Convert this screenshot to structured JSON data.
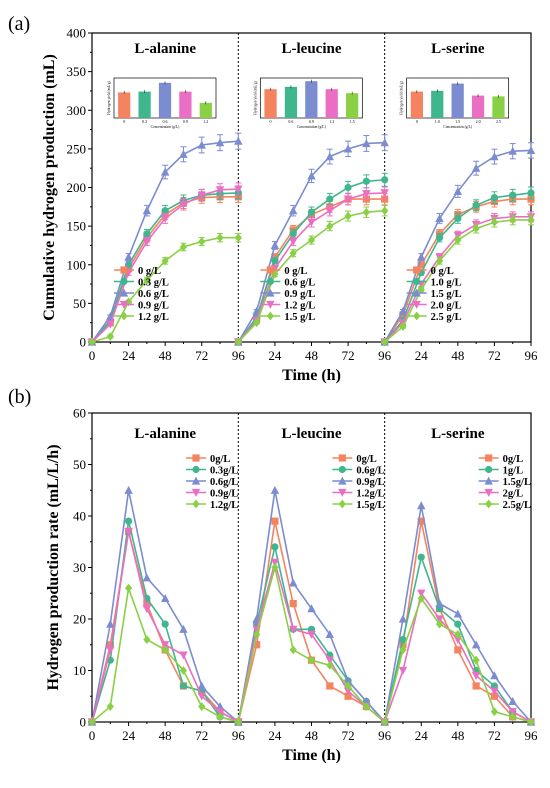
{
  "panel_labels": [
    "(a)",
    "(b)"
  ],
  "chart_data": [
    {
      "type": "line",
      "panel": "(a)",
      "ylabel": "Cumulative hydrogen production (mL)",
      "xlabel": "Time (h)",
      "ylim": [
        0,
        400
      ],
      "yticks": [
        0,
        50,
        100,
        150,
        200,
        250,
        300,
        350,
        400
      ],
      "xticks": [
        "0",
        "24",
        "48",
        "72",
        "96",
        "24",
        "48",
        "72",
        "96",
        "24",
        "48",
        "72",
        "96"
      ],
      "x": [
        0,
        12,
        24,
        36,
        48,
        60,
        72,
        84,
        96
      ],
      "grid": false,
      "legend_position": "bottom-right",
      "subplots": [
        {
          "title": "L-alanine",
          "series": [
            {
              "name": "0 g/L",
              "color": "#f4845f",
              "marker": "square",
              "values": [
                0,
                25,
                95,
                135,
                165,
                180,
                187,
                188,
                188
              ]
            },
            {
              "name": "0.3 g/L",
              "color": "#3fb68e",
              "marker": "circle",
              "values": [
                0,
                28,
                100,
                140,
                170,
                183,
                190,
                192,
                193
              ]
            },
            {
              "name": "0.6 g/L",
              "color": "#7b8cd0",
              "marker": "triangle",
              "values": [
                0,
                33,
                110,
                170,
                220,
                243,
                255,
                258,
                260
              ]
            },
            {
              "name": "0.9 g/L",
              "color": "#ea6fc4",
              "marker": "triangle-down",
              "values": [
                0,
                23,
                90,
                130,
                160,
                178,
                190,
                197,
                198
              ]
            },
            {
              "name": "1.2 g/L",
              "color": "#8ad044",
              "marker": "diamond",
              "values": [
                0,
                7,
                52,
                80,
                105,
                123,
                130,
                135,
                135
              ]
            }
          ],
          "inset": {
            "xlabel": "Concentration (g/L)",
            "ylabel": "Hydrogen yield (mL/g)",
            "categories": [
              "0",
              "0.3",
              "0.6",
              "0.9",
              "1.2"
            ],
            "values": [
              3.2,
              3.3,
              4.4,
              3.3,
              1.9
            ],
            "ylim": [
              0,
              5
            ],
            "colors": [
              "#f4845f",
              "#3fb68e",
              "#7b8cd0",
              "#ea6fc4",
              "#8ad044"
            ]
          }
        },
        {
          "title": "L-leucine",
          "series": [
            {
              "name": "0 g/L",
              "color": "#f4845f",
              "marker": "square",
              "values": [
                0,
                30,
                110,
                145,
                165,
                175,
                185,
                185,
                185
              ]
            },
            {
              "name": "0.6 g/L",
              "color": "#3fb68e",
              "marker": "circle",
              "values": [
                0,
                32,
                105,
                140,
                168,
                185,
                200,
                208,
                210
              ]
            },
            {
              "name": "0.9 g/L",
              "color": "#7b8cd0",
              "marker": "triangle",
              "values": [
                0,
                40,
                125,
                170,
                215,
                240,
                250,
                257,
                258
              ]
            },
            {
              "name": "1.2 g/L",
              "color": "#ea6fc4",
              "marker": "triangle-down",
              "values": [
                0,
                28,
                95,
                130,
                155,
                170,
                185,
                192,
                193
              ]
            },
            {
              "name": "1.5 g/L",
              "color": "#8ad044",
              "marker": "diamond",
              "values": [
                0,
                25,
                88,
                115,
                132,
                150,
                163,
                168,
                170
              ]
            }
          ],
          "inset": {
            "xlabel": "Concentration (g/L)",
            "ylabel": "Hydrogen yield (mL/g)",
            "categories": [
              "0",
              "0.6",
              "0.9",
              "1.2",
              "1.5"
            ],
            "values": [
              3.6,
              3.9,
              4.6,
              3.6,
              3.1
            ],
            "ylim": [
              0,
              5
            ],
            "colors": [
              "#f4845f",
              "#3fb68e",
              "#7b8cd0",
              "#ea6fc4",
              "#8ad044"
            ]
          }
        },
        {
          "title": "L-serine",
          "series": [
            {
              "name": "0 g/L",
              "color": "#f4845f",
              "marker": "square",
              "values": [
                0,
                35,
                100,
                140,
                165,
                175,
                182,
                185,
                185
              ]
            },
            {
              "name": "1.0 g/L",
              "color": "#3fb68e",
              "marker": "circle",
              "values": [
                0,
                28,
                90,
                135,
                160,
                177,
                187,
                190,
                193
              ]
            },
            {
              "name": "1.5 g/L",
              "color": "#7b8cd0",
              "marker": "triangle",
              "values": [
                0,
                40,
                110,
                160,
                195,
                225,
                240,
                247,
                248
              ]
            },
            {
              "name": "2.0 g/L",
              "color": "#ea6fc4",
              "marker": "triangle-down",
              "values": [
                0,
                25,
                75,
                110,
                138,
                152,
                160,
                162,
                162
              ]
            },
            {
              "name": "2.5 g/L",
              "color": "#8ad044",
              "marker": "diamond",
              "values": [
                0,
                20,
                68,
                105,
                132,
                147,
                155,
                158,
                158
              ]
            }
          ],
          "inset": {
            "xlabel": "Concentration (g/L)",
            "ylabel": "Hydrogen yield (mL/g)",
            "categories": [
              "0",
              "1.0",
              "1.5",
              "2.0",
              "2.5"
            ],
            "values": [
              3.3,
              3.4,
              4.3,
              2.8,
              2.7
            ],
            "ylim": [
              0,
              5
            ],
            "colors": [
              "#f4845f",
              "#3fb68e",
              "#7b8cd0",
              "#ea6fc4",
              "#8ad044"
            ]
          }
        }
      ]
    },
    {
      "type": "line",
      "panel": "(b)",
      "ylabel": "Hydrogen production rate (mL/L/h)",
      "xlabel": "Time (h)",
      "ylim": [
        0,
        60
      ],
      "yticks": [
        0,
        10,
        20,
        30,
        40,
        50,
        60
      ],
      "xticks": [
        "0",
        "24",
        "48",
        "72",
        "96",
        "24",
        "48",
        "72",
        "96",
        "24",
        "48",
        "72",
        "96"
      ],
      "x": [
        0,
        12,
        24,
        36,
        48,
        60,
        72,
        84,
        96
      ],
      "grid": false,
      "legend_position": "top-right",
      "subplots": [
        {
          "title": "L-alanine",
          "series": [
            {
              "name": "0g/L",
              "color": "#f4845f",
              "marker": "square",
              "values": [
                0,
                15,
                37,
                23,
                14,
                7,
                6,
                2,
                0
              ]
            },
            {
              "name": "0.3g/L",
              "color": "#3fb68e",
              "marker": "circle",
              "values": [
                0,
                12,
                39,
                24,
                19,
                7,
                6,
                1,
                0
              ]
            },
            {
              "name": "0.6g/L",
              "color": "#7b8cd0",
              "marker": "triangle",
              "values": [
                0,
                19,
                45,
                28,
                24,
                18,
                7,
                3,
                0
              ]
            },
            {
              "name": "0.9g/L",
              "color": "#ea6fc4",
              "marker": "triangle-down",
              "values": [
                0,
                14,
                37,
                22,
                15,
                13,
                5,
                2,
                0
              ]
            },
            {
              "name": "1.2g/L",
              "color": "#8ad044",
              "marker": "diamond",
              "values": [
                0,
                3,
                26,
                16,
                14,
                10,
                3,
                1,
                0
              ]
            }
          ]
        },
        {
          "title": "L-leucine",
          "series": [
            {
              "name": "0g/L",
              "color": "#f4845f",
              "marker": "square",
              "values": [
                0,
                15,
                39,
                23,
                12,
                7,
                5,
                3,
                0
              ]
            },
            {
              "name": "0.6g/L",
              "color": "#3fb68e",
              "marker": "circle",
              "values": [
                0,
                19,
                34,
                18,
                18,
                13,
                8,
                4,
                0
              ]
            },
            {
              "name": "0.9g/L",
              "color": "#7b8cd0",
              "marker": "triangle",
              "values": [
                0,
                20,
                45,
                27,
                22,
                17,
                8,
                4,
                0
              ]
            },
            {
              "name": "1.2g/L",
              "color": "#ea6fc4",
              "marker": "triangle-down",
              "values": [
                0,
                18,
                31,
                18,
                17,
                12,
                6,
                3,
                0
              ]
            },
            {
              "name": "1.5g/L",
              "color": "#8ad044",
              "marker": "diamond",
              "values": [
                0,
                17,
                30,
                14,
                12,
                11,
                7,
                3,
                0
              ]
            }
          ]
        },
        {
          "title": "L-serine",
          "series": [
            {
              "name": "0g/L",
              "color": "#f4845f",
              "marker": "square",
              "values": [
                0,
                15,
                39,
                22,
                14,
                7,
                5,
                1,
                0
              ]
            },
            {
              "name": "1g/L",
              "color": "#3fb68e",
              "marker": "circle",
              "values": [
                0,
                16,
                32,
                22,
                19,
                10,
                7,
                2,
                0
              ]
            },
            {
              "name": "1.5g/L",
              "color": "#7b8cd0",
              "marker": "triangle",
              "values": [
                0,
                20,
                42,
                23,
                21,
                15,
                9,
                4,
                0
              ]
            },
            {
              "name": "2g/L",
              "color": "#ea6fc4",
              "marker": "triangle-down",
              "values": [
                0,
                10,
                25,
                20,
                16,
                9,
                6,
                2,
                0
              ]
            },
            {
              "name": "2.5g/L",
              "color": "#8ad044",
              "marker": "diamond",
              "values": [
                0,
                14,
                24,
                19,
                17,
                12,
                2,
                1,
                0
              ]
            }
          ]
        }
      ]
    }
  ]
}
